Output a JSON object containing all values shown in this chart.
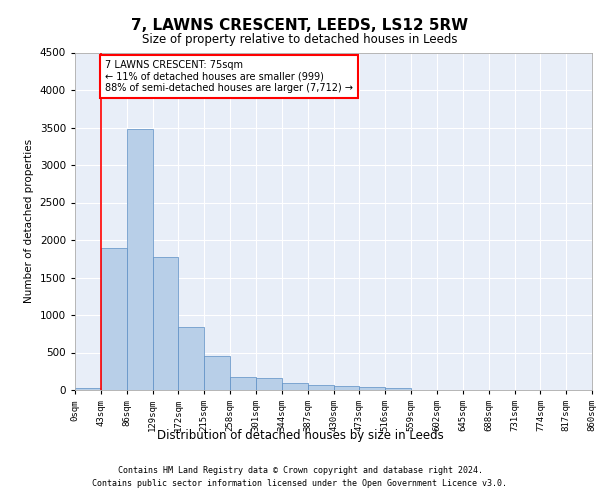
{
  "title": "7, LAWNS CRESCENT, LEEDS, LS12 5RW",
  "subtitle": "Size of property relative to detached houses in Leeds",
  "xlabel": "Distribution of detached houses by size in Leeds",
  "ylabel": "Number of detached properties",
  "bar_values": [
    30,
    1900,
    3480,
    1770,
    840,
    450,
    170,
    165,
    90,
    70,
    50,
    40,
    30,
    0,
    0,
    0,
    0,
    0,
    0,
    0
  ],
  "bar_labels": [
    "0sqm",
    "43sqm",
    "86sqm",
    "129sqm",
    "172sqm",
    "215sqm",
    "258sqm",
    "301sqm",
    "344sqm",
    "387sqm",
    "430sqm",
    "473sqm",
    "516sqm",
    "559sqm",
    "602sqm",
    "645sqm",
    "688sqm",
    "731sqm",
    "774sqm",
    "817sqm",
    "860sqm"
  ],
  "bar_color": "#b8cfe8",
  "bar_edge_color": "#5b8ec4",
  "ylim": [
    0,
    4500
  ],
  "yticks": [
    0,
    500,
    1000,
    1500,
    2000,
    2500,
    3000,
    3500,
    4000,
    4500
  ],
  "property_line_x": 1.0,
  "annotation_text": "7 LAWNS CRESCENT: 75sqm\n← 11% of detached houses are smaller (999)\n88% of semi-detached houses are larger (7,712) →",
  "annotation_box_color": "white",
  "annotation_box_edge_color": "red",
  "vline_color": "red",
  "footer_line1": "Contains HM Land Registry data © Crown copyright and database right 2024.",
  "footer_line2": "Contains public sector information licensed under the Open Government Licence v3.0.",
  "bg_color": "#e8eef8",
  "grid_color": "white",
  "fig_bg_color": "white"
}
